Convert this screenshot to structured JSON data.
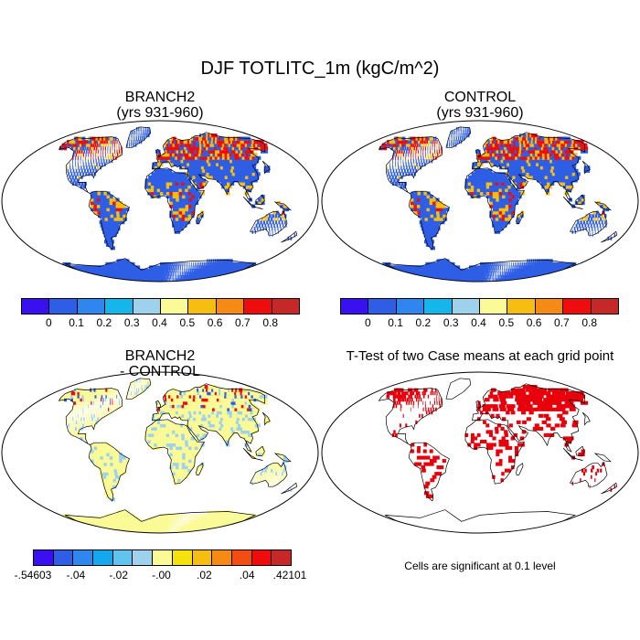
{
  "title": "DJF TOTLITC_1m (kgC/m^2)",
  "panels": {
    "branch2": {
      "title_line1": "BRANCH2",
      "title_line2": "(yrs 931-960)"
    },
    "control": {
      "title_line1": "CONTROL",
      "title_line2": "(yrs 931-960)"
    },
    "diff": {
      "title_line1": "BRANCH2",
      "title_line2": "- CONTROL"
    },
    "ttest": {
      "title": "T-Test of two Case means at each grid point",
      "note": "Cells are significant at 0.1 level",
      "signif_color": "#e8000b"
    }
  },
  "colorbar_main": {
    "colors": [
      "#3a10f0",
      "#2f5ee6",
      "#2f86ee",
      "#14b6ec",
      "#9ed2ec",
      "#fafa96",
      "#f5be10",
      "#f58a14",
      "#ee0c0c",
      "#c62828"
    ],
    "labels": [
      "0",
      "0.1",
      "0.2",
      "0.3",
      "0.4",
      "0.5",
      "0.6",
      "0.7",
      "0.8"
    ]
  },
  "colorbar_diff": {
    "colors": [
      "#3a10f0",
      "#2f5ee6",
      "#2f86ee",
      "#14a8ec",
      "#62c3ee",
      "#9ed2ec",
      "#fafa96",
      "#f5e010",
      "#f5be10",
      "#f58a14",
      "#f24e14",
      "#ee0c0c",
      "#c62828"
    ],
    "labels": [
      "-.54603",
      "-.04",
      "-.02",
      "-.00",
      ".02",
      ".04",
      ".42101"
    ]
  },
  "map_colors": {
    "ocean": "#ffffff",
    "land_main": "#2f5ee6",
    "land_main_high": "#ee0c0c",
    "land_main_mid": "#f5be10",
    "land_diff": "#fafa96",
    "land_diff_minor": "#9ed2ec",
    "coast": "#000000"
  }
}
